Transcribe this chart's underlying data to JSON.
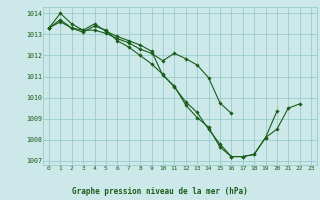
{
  "title": "Graphe pression niveau de la mer (hPa)",
  "bg_color": "#cce8e8",
  "grid_color": "#99cccc",
  "line_color": "#1a5c1a",
  "marker_color": "#1a5c1a",
  "xlim": [
    -0.5,
    23.5
  ],
  "ylim": [
    1006.8,
    1014.3
  ],
  "xticks": [
    0,
    1,
    2,
    3,
    4,
    5,
    6,
    7,
    8,
    9,
    10,
    11,
    12,
    13,
    14,
    15,
    16,
    17,
    18,
    19,
    20,
    21,
    22,
    23
  ],
  "yticks": [
    1007,
    1008,
    1009,
    1010,
    1011,
    1012,
    1013,
    1014
  ],
  "series": [
    [
      1013.3,
      1014.0,
      1013.5,
      1013.2,
      1013.5,
      1013.15,
      1012.9,
      1012.7,
      1012.5,
      1012.2,
      1011.05,
      1010.55,
      1009.65,
      1009.05,
      1008.6,
      1007.65,
      1007.2,
      1007.2,
      1007.3,
      1008.1,
      1009.35,
      null,
      null,
      null
    ],
    [
      1013.3,
      1013.7,
      1013.3,
      1013.2,
      1013.2,
      1013.05,
      1012.8,
      1012.6,
      1012.3,
      1012.1,
      1011.75,
      1012.1,
      1011.85,
      1011.55,
      1010.95,
      1009.75,
      1009.25,
      null,
      null,
      null,
      null,
      null,
      null,
      null
    ],
    [
      1013.3,
      1013.6,
      1013.3,
      1013.1,
      1013.4,
      1013.2,
      1012.7,
      1012.4,
      1012.0,
      1011.6,
      1011.1,
      1010.5,
      1009.8,
      1009.3,
      1008.5,
      1007.8,
      1007.2,
      1007.2,
      1007.3,
      1008.1,
      1008.5,
      1009.5,
      1009.7,
      null
    ]
  ]
}
